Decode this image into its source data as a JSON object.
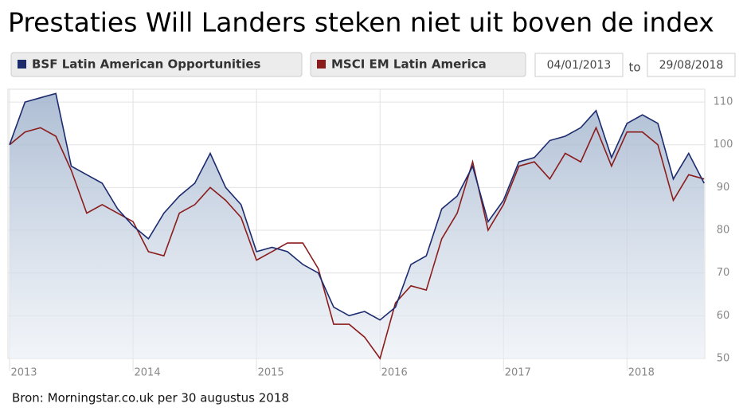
{
  "chart_data": {
    "type": "line",
    "title": "Prestaties Will Landers steken niet uit boven de index",
    "source": "Bron: Morningstar.co.uk per 30 augustus 2018",
    "range_from": "04/01/2013",
    "range_separator": "to",
    "range_to": "29/08/2018",
    "x": [
      2013,
      2013.125,
      2013.25,
      2013.375,
      2013.5,
      2013.625,
      2013.75,
      2013.875,
      2014,
      2014.125,
      2014.25,
      2014.375,
      2014.5,
      2014.625,
      2014.75,
      2014.875,
      2015,
      2015.125,
      2015.25,
      2015.375,
      2015.5,
      2015.625,
      2015.75,
      2015.875,
      2016,
      2016.125,
      2016.25,
      2016.375,
      2016.5,
      2016.625,
      2016.75,
      2016.875,
      2017,
      2017.125,
      2017.25,
      2017.375,
      2017.5,
      2017.625,
      2017.75,
      2017.875,
      2018,
      2018.125,
      2018.25,
      2018.375,
      2018.5,
      2018.625
    ],
    "series": [
      {
        "name": "BSF Latin American Opportunities",
        "color": "#1c2b6e",
        "area": true,
        "values": [
          100,
          110,
          111,
          112,
          95,
          93,
          91,
          85,
          81,
          78,
          84,
          88,
          91,
          98,
          90,
          86,
          75,
          76,
          75,
          72,
          70,
          62,
          60,
          61,
          59,
          62,
          72,
          74,
          85,
          88,
          95,
          82,
          87,
          96,
          97,
          101,
          102,
          104,
          108,
          97,
          105,
          107,
          105,
          92,
          98,
          91
        ]
      },
      {
        "name": "MSCI EM Latin America",
        "color": "#8b1c1c",
        "values": [
          100,
          103,
          104,
          102,
          94,
          84,
          86,
          84,
          82,
          75,
          74,
          84,
          86,
          90,
          87,
          83,
          73,
          75,
          77,
          77,
          71,
          58,
          58,
          55,
          50,
          63,
          67,
          66,
          78,
          84,
          96,
          80,
          86,
          95,
          96,
          92,
          98,
          96,
          104,
          95,
          103,
          103,
          100,
          87,
          93,
          92
        ]
      }
    ],
    "xlim": [
      2013,
      2018.63
    ],
    "xticks": [
      2013,
      2014,
      2015,
      2016,
      2017,
      2018
    ],
    "ylim": [
      50,
      113
    ],
    "yticks": [
      50,
      60,
      70,
      80,
      90,
      100,
      110
    ],
    "grid": true
  }
}
